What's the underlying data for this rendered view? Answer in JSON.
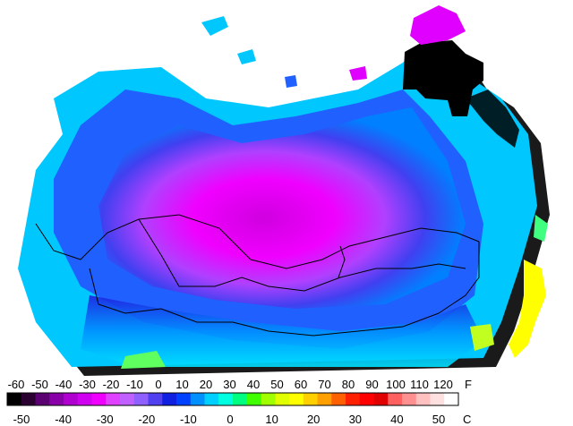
{
  "legend": {
    "fahrenheit_unit": "F",
    "celsius_unit": "C",
    "fahrenheit_ticks": [
      "-60",
      "-50",
      "-40",
      "-30",
      "-20",
      "-10",
      "0",
      "10",
      "20",
      "30",
      "40",
      "50",
      "60",
      "70",
      "80",
      "90",
      "100",
      "110",
      "120"
    ],
    "celsius_ticks": [
      "-50",
      "-40",
      "-30",
      "-20",
      "-10",
      "0",
      "10",
      "20",
      "30",
      "40",
      "50"
    ],
    "colors": [
      "#000000",
      "#2a0030",
      "#5a0070",
      "#8a00a8",
      "#b000d0",
      "#d000f0",
      "#f000ff",
      "#e040ff",
      "#c060ff",
      "#9060ff",
      "#5040f0",
      "#1020e0",
      "#0040ff",
      "#0090ff",
      "#00d0ff",
      "#00ffe0",
      "#00ff80",
      "#40ff00",
      "#a0ff00",
      "#e0ff00",
      "#ffff00",
      "#ffd000",
      "#ffa000",
      "#ff6000",
      "#ff2000",
      "#ff0000",
      "#e00000",
      "#ff6060",
      "#ff9090",
      "#ffc0c0",
      "#ffe0e0",
      "#ffffff"
    ]
  },
  "map_colors": {
    "cold_extreme": "#000000",
    "very_cold": "#e000ff",
    "cold": "#b030ff",
    "cool": "#3050ff",
    "mild": "#00a0ff",
    "cyan": "#00e8ff",
    "warm": "#40ff80",
    "yellow": "#ffff00",
    "shadow": "#202020",
    "border": "#000000"
  }
}
